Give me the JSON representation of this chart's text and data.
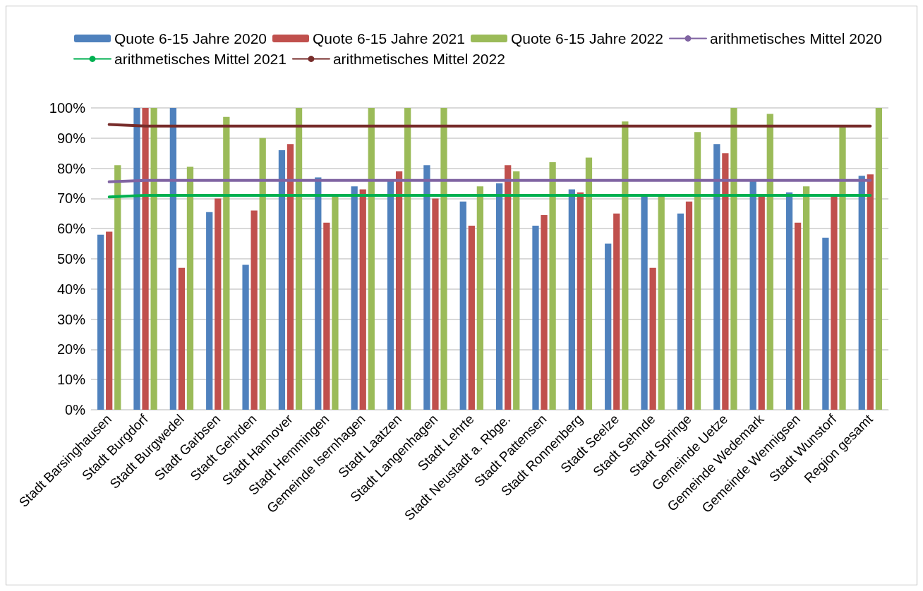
{
  "chart_data": {
    "type": "bar",
    "categories": [
      "Stadt Barsinghausen",
      "Stadt Burgdorf",
      "Stadt Burgwedel",
      "Stadt Garbsen",
      "Stadt Gehrden",
      "Stadt Hannover",
      "Stadt Hemmingen",
      "Gemeinde Isernhagen",
      "Stadt Laatzen",
      "Stadt Langenhagen",
      "Stadt Lehrte",
      "Stadt Neustadt a. Rbge.",
      "Stadt Pattensen",
      "Stadt Ronnenberg",
      "Stadt Seelze",
      "Stadt Sehnde",
      "Stadt Springe",
      "Gemeinde Uetze",
      "Gemeinde Wedemark",
      "Gemeinde Wennigsen",
      "Stadt Wunstorf",
      "Region gesamt"
    ],
    "series": [
      {
        "name": "Quote 6-15 Jahre 2020",
        "color": "#4f81bd",
        "values": [
          58,
          100,
          100,
          65.5,
          48,
          86,
          77,
          74,
          76,
          81,
          69,
          75,
          61,
          73,
          55,
          71,
          65,
          88,
          76,
          72,
          57,
          77.5
        ]
      },
      {
        "name": "Quote 6-15 Jahre 2021",
        "color": "#c0504d",
        "values": [
          59,
          100,
          47,
          70,
          66,
          88,
          62,
          73,
          79,
          70,
          61,
          81,
          64.5,
          72,
          65,
          47,
          69,
          85,
          71,
          62,
          71,
          78
        ]
      },
      {
        "name": "Quote 6-15 Jahre 2022",
        "color": "#9bbb59",
        "values": [
          81,
          100,
          80.5,
          97,
          90,
          100,
          71,
          100,
          100,
          100,
          74,
          79,
          82,
          83.5,
          95.5,
          71,
          92,
          100,
          98,
          74,
          94,
          100
        ]
      },
      {
        "name": "arithmetisches Mittel 2020",
        "type": "line",
        "color": "#8064a2",
        "values": [
          75.5,
          76,
          76,
          76,
          76,
          76,
          76,
          76,
          76,
          76,
          76,
          76,
          76,
          76,
          76,
          76,
          76,
          76,
          76,
          76,
          76,
          76
        ]
      },
      {
        "name": "arithmetisches Mittel 2021",
        "type": "line",
        "color": "#00b050",
        "values": [
          70.5,
          71,
          71,
          71,
          71,
          71,
          71,
          71,
          71,
          71,
          71,
          71,
          71,
          71,
          71,
          71,
          71,
          71,
          71,
          71,
          71,
          71
        ]
      },
      {
        "name": "arithmetisches Mittel 2022",
        "type": "line",
        "color": "#772c2a",
        "values": [
          94.5,
          94,
          94,
          94,
          94,
          94,
          94,
          94,
          94,
          94,
          94,
          94,
          94,
          94,
          94,
          94,
          94,
          94,
          94,
          94,
          94,
          94
        ]
      }
    ],
    "ylim": [
      0,
      100
    ],
    "yticks": [
      {
        "value": 0,
        "label": "0%"
      },
      {
        "value": 10,
        "label": "10%"
      },
      {
        "value": 20,
        "label": "20%"
      },
      {
        "value": 30,
        "label": "30%"
      },
      {
        "value": 40,
        "label": "40%"
      },
      {
        "value": 50,
        "label": "50%"
      },
      {
        "value": 60,
        "label": "60%"
      },
      {
        "value": 70,
        "label": "70%"
      },
      {
        "value": 80,
        "label": "80%"
      },
      {
        "value": 90,
        "label": "90%"
      },
      {
        "value": 100,
        "label": "100%"
      }
    ],
    "grid": "y",
    "legend": "top",
    "marker": "none",
    "line_style": "solid"
  }
}
